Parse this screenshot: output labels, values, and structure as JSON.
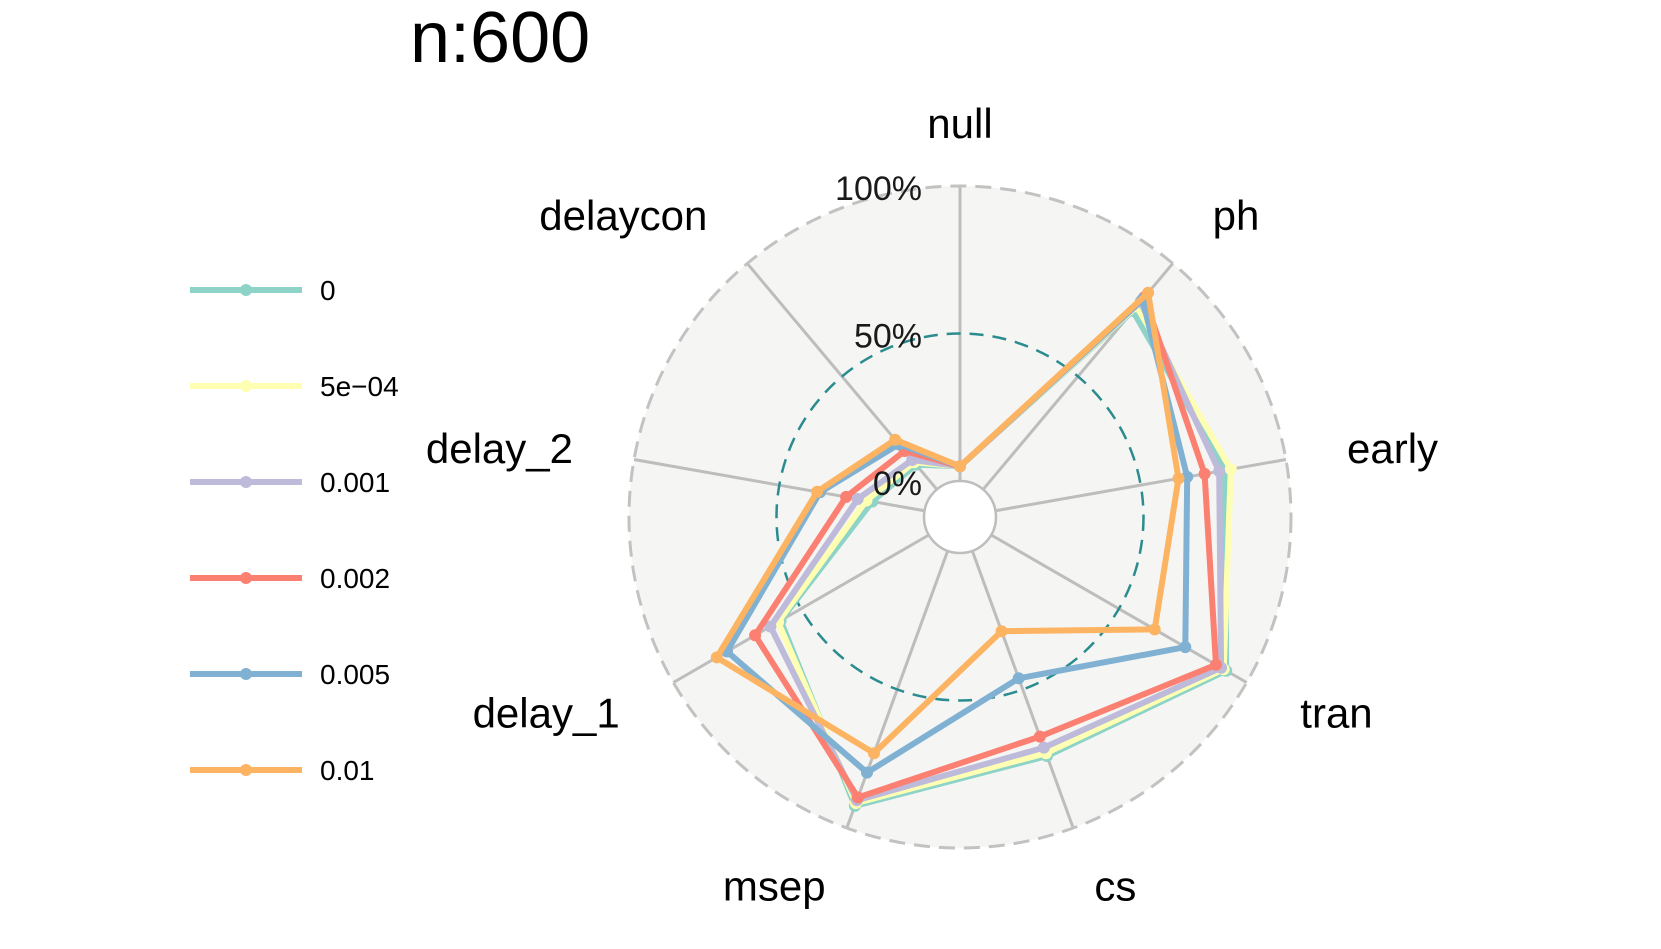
{
  "chart_data": {
    "type": "radar",
    "title": "n:600",
    "axes": [
      "null",
      "ph",
      "early",
      "tran",
      "cs",
      "msep",
      "delay_1",
      "delay_2",
      "delaycon"
    ],
    "radial_ticks": [
      "0%",
      "50%",
      "100%"
    ],
    "range": [
      0,
      100
    ],
    "grid": true,
    "legend_position": "left",
    "series": [
      {
        "name": "0",
        "color": "#8DD3C7",
        "values": [
          5,
          79,
          79,
          92,
          74,
          92,
          58,
          18,
          11
        ]
      },
      {
        "name": "5e−04",
        "color": "#FFFFB3",
        "values": [
          5,
          81,
          81,
          91,
          73,
          91,
          59,
          20,
          12
        ]
      },
      {
        "name": "0.001",
        "color": "#BEBADA",
        "values": [
          5,
          83,
          77,
          90,
          71,
          90,
          62,
          23,
          13
        ]
      },
      {
        "name": "0.002",
        "color": "#FB8072",
        "values": [
          5,
          85,
          72,
          88,
          67,
          89,
          68,
          27,
          17
        ]
      },
      {
        "name": "0.005",
        "color": "#80B1D3",
        "values": [
          5,
          84,
          66,
          76,
          46,
          80,
          79,
          36,
          20
        ]
      },
      {
        "name": "0.01",
        "color": "#FDB462",
        "values": [
          5,
          87,
          63,
          64,
          29,
          73,
          83,
          37,
          22
        ]
      }
    ]
  }
}
